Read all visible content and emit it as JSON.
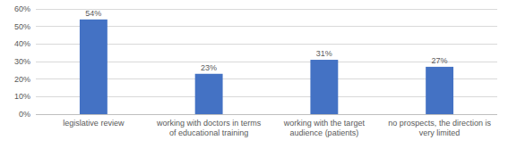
{
  "chart_data": {
    "type": "bar",
    "categories": [
      "legislative review",
      "working with doctors in terms of educational training",
      "working with the target audience (patients)",
      "no prospects, the direction is very limited"
    ],
    "values": [
      54,
      23,
      31,
      27
    ],
    "value_labels": [
      "54%",
      "23%",
      "31%",
      "27%"
    ],
    "color": "#4472c4",
    "ylim": [
      0,
      60
    ],
    "yticks": [
      {
        "value": 0,
        "label": "0%"
      },
      {
        "value": 10,
        "label": "10%"
      },
      {
        "value": 20,
        "label": "20%"
      },
      {
        "value": 30,
        "label": "30%"
      },
      {
        "value": 40,
        "label": "40%"
      },
      {
        "value": 50,
        "label": "50%"
      },
      {
        "value": 60,
        "label": "60%"
      }
    ],
    "grid": true,
    "data_labels": true
  }
}
